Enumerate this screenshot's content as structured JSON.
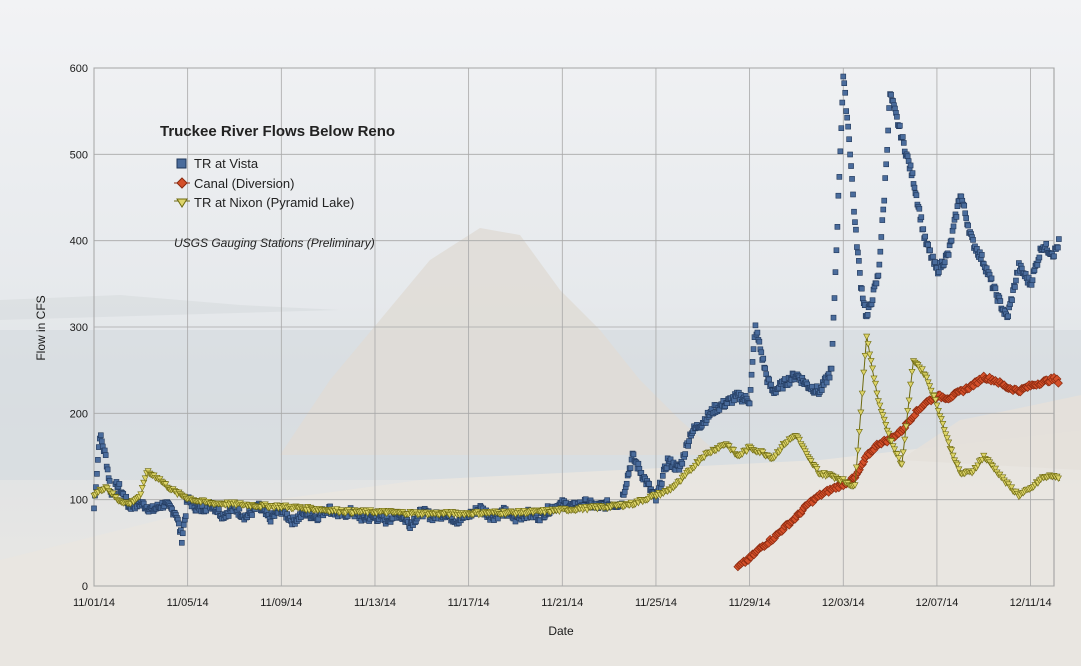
{
  "chart_data": {
    "type": "scatter",
    "title": "Truckee River Flows Below Reno",
    "xlabel": "Date",
    "ylabel": "Flow in CFS",
    "annotation": "USGS Gauging Stations (Preliminary)",
    "ylim": [
      0,
      600
    ],
    "xlim": [
      "2014-11-01",
      "2014-12-12"
    ],
    "yticks": [
      "0",
      "100",
      "200",
      "300",
      "400",
      "500",
      "600"
    ],
    "xticks": [
      "11/01/14",
      "11/05/14",
      "11/09/14",
      "11/13/14",
      "11/17/14",
      "11/21/14",
      "11/25/14",
      "11/29/14",
      "12/03/14",
      "12/07/14",
      "12/11/14"
    ],
    "grid": true,
    "legend_position": "top-left",
    "series": [
      {
        "name": "TR at Vista",
        "marker": "square",
        "color": "#2f4f7a",
        "fill": "#4a6c9c",
        "points": [
          [
            "2014-11-01",
            90
          ],
          [
            "2014-11-01T06",
            175
          ],
          [
            "2014-11-01T12",
            150
          ],
          [
            "2014-11-01T18",
            105
          ],
          [
            "2014-11-02",
            118
          ],
          [
            "2014-11-02T12",
            92
          ],
          [
            "2014-11-03",
            96
          ],
          [
            "2014-11-03T12",
            88
          ],
          [
            "2014-11-04",
            95
          ],
          [
            "2014-11-04T12",
            85
          ],
          [
            "2014-11-04T18",
            55
          ],
          [
            "2014-11-05",
            100
          ],
          [
            "2014-11-05T12",
            88
          ],
          [
            "2014-11-06",
            95
          ],
          [
            "2014-11-06T12",
            82
          ],
          [
            "2014-11-07",
            90
          ],
          [
            "2014-11-07T12",
            80
          ],
          [
            "2014-11-08",
            92
          ],
          [
            "2014-11-08T12",
            78
          ],
          [
            "2014-11-09",
            88
          ],
          [
            "2014-11-09T12",
            75
          ],
          [
            "2014-11-10",
            85
          ],
          [
            "2014-11-10T12",
            80
          ],
          [
            "2014-11-11",
            90
          ],
          [
            "2014-11-11T12",
            82
          ],
          [
            "2014-11-12",
            86
          ],
          [
            "2014-11-12T12",
            78
          ],
          [
            "2014-11-13",
            80
          ],
          [
            "2014-11-13T12",
            76
          ],
          [
            "2014-11-14",
            84
          ],
          [
            "2014-11-14T12",
            72
          ],
          [
            "2014-11-15",
            86
          ],
          [
            "2014-11-15T12",
            80
          ],
          [
            "2014-11-16",
            84
          ],
          [
            "2014-11-16T12",
            76
          ],
          [
            "2014-11-17",
            82
          ],
          [
            "2014-11-17T12",
            90
          ],
          [
            "2014-11-18",
            80
          ],
          [
            "2014-11-18T12",
            86
          ],
          [
            "2014-11-19",
            78
          ],
          [
            "2014-11-19T12",
            84
          ],
          [
            "2014-11-20",
            80
          ],
          [
            "2014-11-20T12",
            90
          ],
          [
            "2014-11-21",
            95
          ],
          [
            "2014-11-21T12",
            92
          ],
          [
            "2014-11-22",
            96
          ],
          [
            "2014-11-22T12",
            92
          ],
          [
            "2014-11-23",
            95
          ],
          [
            "2014-11-23T12",
            95
          ],
          [
            "2014-11-24",
            150
          ],
          [
            "2014-11-24T12",
            125
          ],
          [
            "2014-11-25",
            100
          ],
          [
            "2014-11-25T12",
            145
          ],
          [
            "2014-11-26",
            135
          ],
          [
            "2014-11-26T12",
            178
          ],
          [
            "2014-11-27",
            190
          ],
          [
            "2014-11-27T12",
            205
          ],
          [
            "2014-11-28",
            212
          ],
          [
            "2014-11-28T12",
            220
          ],
          [
            "2014-11-29",
            215
          ],
          [
            "2014-11-29T06",
            300
          ],
          [
            "2014-11-29T18",
            240
          ],
          [
            "2014-11-30",
            225
          ],
          [
            "2014-11-30T12",
            235
          ],
          [
            "2014-12-01",
            245
          ],
          [
            "2014-12-01T12",
            232
          ],
          [
            "2014-12-02",
            225
          ],
          [
            "2014-12-02T12",
            250
          ],
          [
            "2014-12-03",
            590
          ],
          [
            "2014-12-03T06",
            520
          ],
          [
            "2014-12-03T12",
            420
          ],
          [
            "2014-12-03T18",
            350
          ],
          [
            "2014-12-04",
            310
          ],
          [
            "2014-12-04T12",
            360
          ],
          [
            "2014-12-04T18",
            450
          ],
          [
            "2014-12-05",
            570
          ],
          [
            "2014-12-05T12",
            520
          ],
          [
            "2014-12-06",
            470
          ],
          [
            "2014-12-06T12",
            400
          ],
          [
            "2014-12-07",
            365
          ],
          [
            "2014-12-07T12",
            385
          ],
          [
            "2014-12-08",
            455
          ],
          [
            "2014-12-08T12",
            400
          ],
          [
            "2014-12-09",
            375
          ],
          [
            "2014-12-09T12",
            340
          ],
          [
            "2014-12-10",
            310
          ],
          [
            "2014-12-10T12",
            370
          ],
          [
            "2014-12-11",
            350
          ],
          [
            "2014-12-11T12",
            395
          ],
          [
            "2014-12-12",
            385
          ],
          [
            "2014-12-12T06",
            400
          ]
        ]
      },
      {
        "name": "Canal (Diversion)",
        "marker": "diamond",
        "color": "#8a2a10",
        "fill": "#d4502a",
        "points": [
          [
            "2014-11-28T12",
            22
          ],
          [
            "2014-11-29",
            32
          ],
          [
            "2014-11-29T12",
            45
          ],
          [
            "2014-11-30",
            55
          ],
          [
            "2014-11-30T12",
            68
          ],
          [
            "2014-12-01",
            80
          ],
          [
            "2014-12-01T12",
            95
          ],
          [
            "2014-12-02",
            105
          ],
          [
            "2014-12-02T12",
            112
          ],
          [
            "2014-12-03",
            118
          ],
          [
            "2014-12-03T12",
            125
          ],
          [
            "2014-12-04",
            150
          ],
          [
            "2014-12-04T12",
            165
          ],
          [
            "2014-12-05",
            170
          ],
          [
            "2014-12-05T12",
            180
          ],
          [
            "2014-12-06",
            198
          ],
          [
            "2014-12-06T12",
            212
          ],
          [
            "2014-12-07",
            220
          ],
          [
            "2014-12-07T12",
            218
          ],
          [
            "2014-12-08",
            225
          ],
          [
            "2014-12-08T12",
            232
          ],
          [
            "2014-12-09",
            242
          ],
          [
            "2014-12-09T12",
            238
          ],
          [
            "2014-12-10",
            230
          ],
          [
            "2014-12-10T12",
            226
          ],
          [
            "2014-12-11",
            232
          ],
          [
            "2014-12-11T12",
            236
          ],
          [
            "2014-12-12",
            240
          ],
          [
            "2014-12-12T06",
            236
          ]
        ]
      },
      {
        "name": "TR at Nixon (Pyramid Lake)",
        "marker": "triangle-down",
        "color": "#6e6a10",
        "fill": "#ddd46a",
        "points": [
          [
            "2014-11-01",
            105
          ],
          [
            "2014-11-01T12",
            115
          ],
          [
            "2014-11-02",
            100
          ],
          [
            "2014-11-02T12",
            95
          ],
          [
            "2014-11-03",
            105
          ],
          [
            "2014-11-03T06",
            132
          ],
          [
            "2014-11-03T18",
            125
          ],
          [
            "2014-11-04",
            118
          ],
          [
            "2014-11-04T12",
            108
          ],
          [
            "2014-11-05",
            102
          ],
          [
            "2014-11-05T12",
            98
          ],
          [
            "2014-11-06",
            96
          ],
          [
            "2014-11-07",
            95
          ],
          [
            "2014-11-08",
            93
          ],
          [
            "2014-11-09",
            92
          ],
          [
            "2014-11-10",
            90
          ],
          [
            "2014-11-11",
            88
          ],
          [
            "2014-11-12",
            86
          ],
          [
            "2014-11-13",
            86
          ],
          [
            "2014-11-14",
            85
          ],
          [
            "2014-11-15",
            84
          ],
          [
            "2014-11-16",
            84
          ],
          [
            "2014-11-17",
            84
          ],
          [
            "2014-11-18",
            85
          ],
          [
            "2014-11-19",
            85
          ],
          [
            "2014-11-20",
            86
          ],
          [
            "2014-11-21",
            88
          ],
          [
            "2014-11-22",
            90
          ],
          [
            "2014-11-23",
            92
          ],
          [
            "2014-11-24",
            95
          ],
          [
            "2014-11-25",
            105
          ],
          [
            "2014-11-25T12",
            110
          ],
          [
            "2014-11-26",
            120
          ],
          [
            "2014-11-26T12",
            135
          ],
          [
            "2014-11-27",
            150
          ],
          [
            "2014-11-27T12",
            158
          ],
          [
            "2014-11-28",
            165
          ],
          [
            "2014-11-28T12",
            150
          ],
          [
            "2014-11-29",
            160
          ],
          [
            "2014-11-29T12",
            155
          ],
          [
            "2014-11-30",
            148
          ],
          [
            "2014-11-30T12",
            165
          ],
          [
            "2014-12-01",
            175
          ],
          [
            "2014-12-01T12",
            148
          ],
          [
            "2014-12-02",
            130
          ],
          [
            "2014-12-02T12",
            128
          ],
          [
            "2014-12-03",
            122
          ],
          [
            "2014-12-03T12",
            115
          ],
          [
            "2014-12-04",
            290
          ],
          [
            "2014-12-04T06",
            250
          ],
          [
            "2014-12-04T12",
            215
          ],
          [
            "2014-12-05",
            170
          ],
          [
            "2014-12-05T12",
            140
          ],
          [
            "2014-12-06",
            262
          ],
          [
            "2014-12-06T12",
            245
          ],
          [
            "2014-12-07",
            210
          ],
          [
            "2014-12-07T12",
            165
          ],
          [
            "2014-12-08",
            130
          ],
          [
            "2014-12-08T12",
            132
          ],
          [
            "2014-12-09",
            150
          ],
          [
            "2014-12-09T12",
            135
          ],
          [
            "2014-12-10",
            118
          ],
          [
            "2014-12-10T12",
            105
          ],
          [
            "2014-12-11",
            112
          ],
          [
            "2014-12-11T12",
            125
          ],
          [
            "2014-12-12",
            128
          ],
          [
            "2014-12-12T06",
            122
          ]
        ]
      }
    ]
  }
}
